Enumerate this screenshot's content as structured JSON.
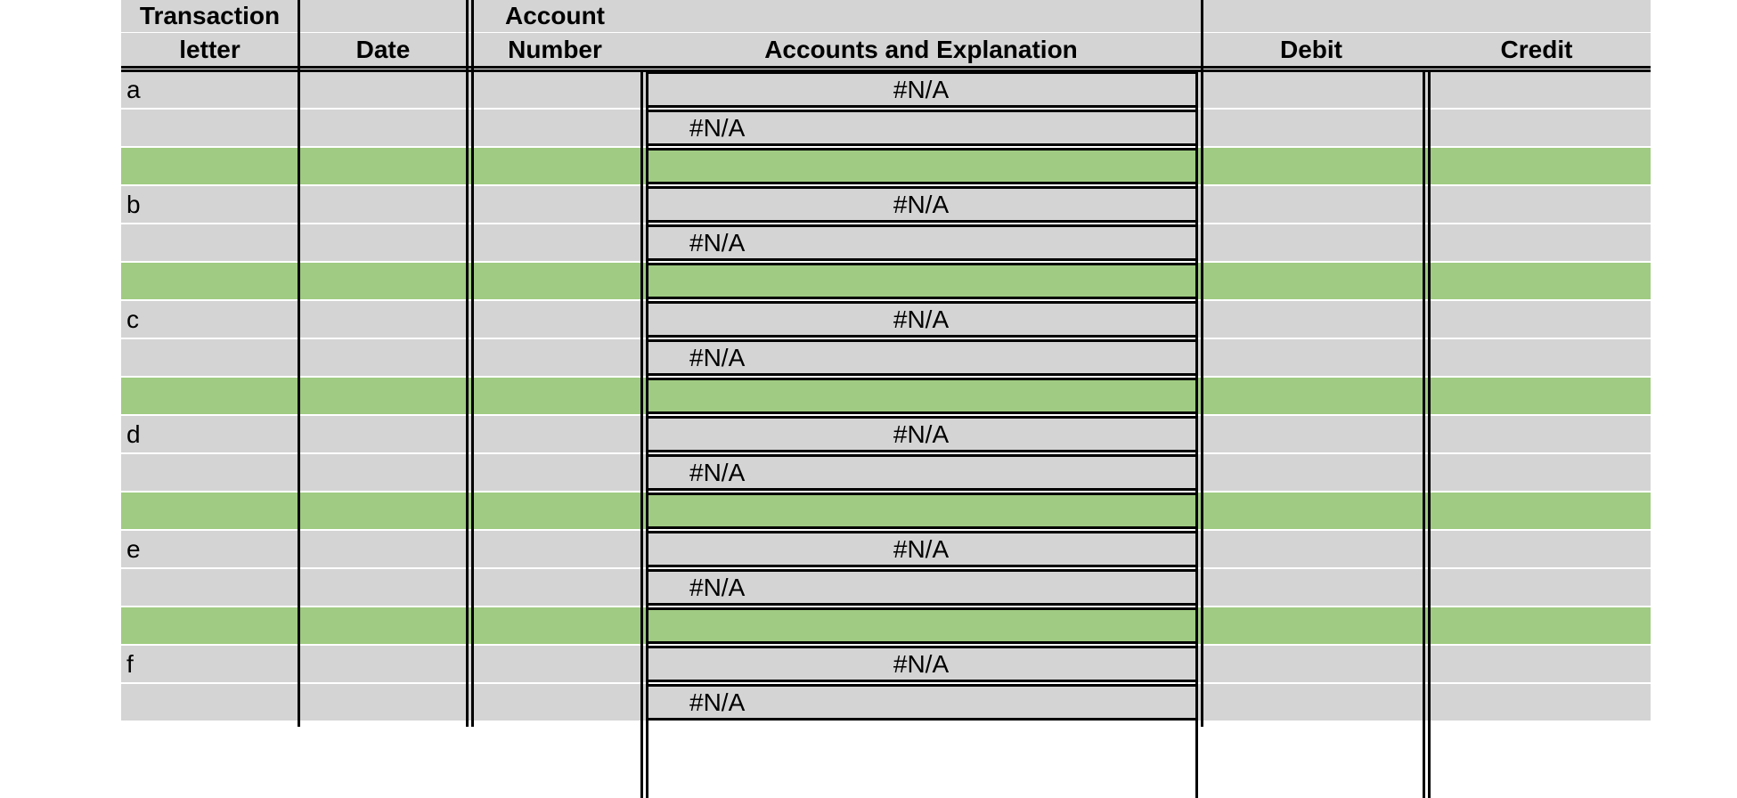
{
  "columns": {
    "transaction_letter": [
      "Transaction",
      "letter"
    ],
    "date": "Date",
    "account_number": [
      "Account",
      "Number"
    ],
    "accounts_explanation": "Accounts and Explanation",
    "debit": "Debit",
    "credit": "Credit"
  },
  "colors": {
    "cell_gray": "#d4d4d4",
    "separator_green": "#a0cb82"
  },
  "transactions": [
    {
      "letter": "a",
      "line1": "#N/A",
      "line2": "#N/A"
    },
    {
      "letter": "b",
      "line1": "#N/A",
      "line2": "#N/A"
    },
    {
      "letter": "c",
      "line1": "#N/A",
      "line2": "#N/A"
    },
    {
      "letter": "d",
      "line1": "#N/A",
      "line2": "#N/A"
    },
    {
      "letter": "e",
      "line1": "#N/A",
      "line2": "#N/A"
    },
    {
      "letter": "f",
      "line1": "#N/A",
      "line2": "#N/A"
    }
  ]
}
